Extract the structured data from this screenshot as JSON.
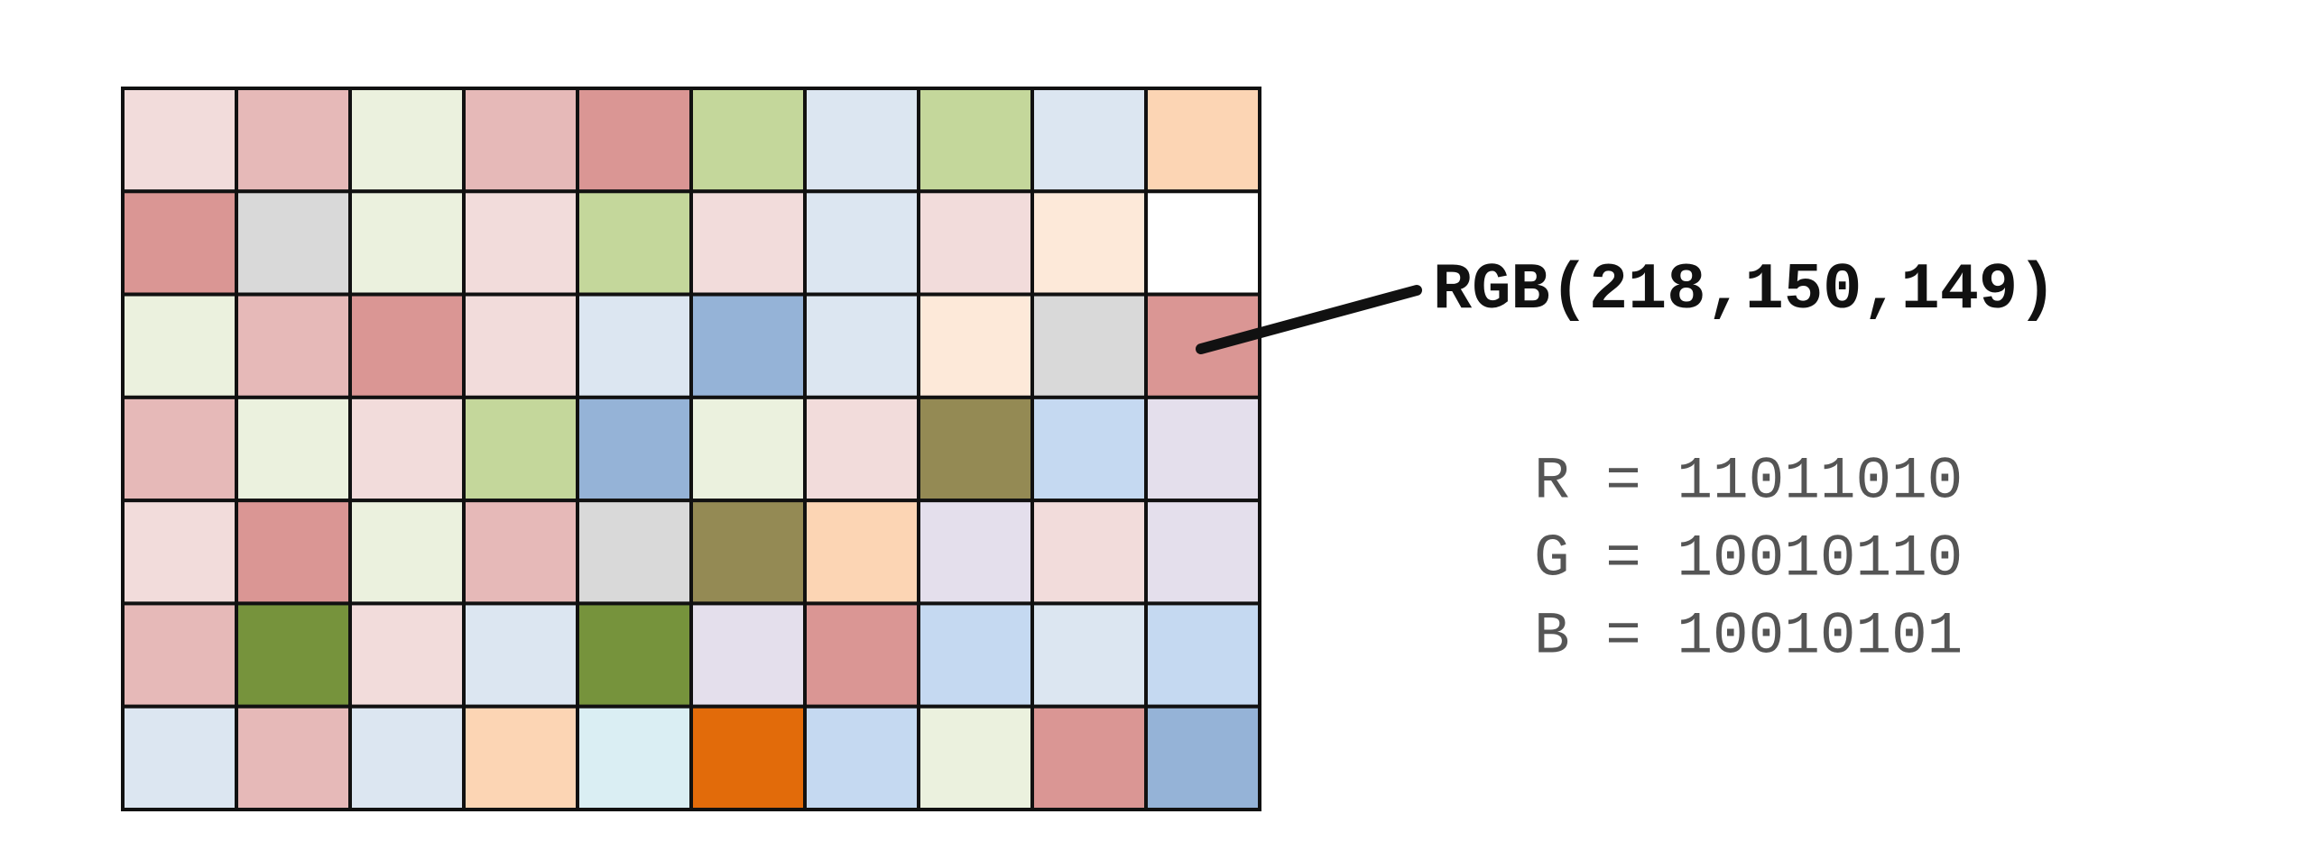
{
  "pixels": {
    "rows": [
      [
        "#f2dcdb",
        "#e6b9b8",
        "#ebf1de",
        "#e6b9b8",
        "#da9694",
        "#c4d79b",
        "#dce6f1",
        "#c4d79b",
        "#dce6f1",
        "#fcd5b4"
      ],
      [
        "#da9694",
        "#d9d9d9",
        "#ebf1de",
        "#f2dcdb",
        "#c4d79b",
        "#f2dcdb",
        "#dce6f1",
        "#f2dcdb",
        "#fde9d9",
        "#ffffff"
      ],
      [
        "#ebf1de",
        "#e6b9b8",
        "#da9694",
        "#f2dcdb",
        "#dce6f1",
        "#95b3d7",
        "#dce6f1",
        "#fde9d9",
        "#d9d9d9",
        "#da9694"
      ],
      [
        "#e6b9b8",
        "#ebf1de",
        "#f2dcdb",
        "#c4d79b",
        "#95b3d7",
        "#ebf1de",
        "#f2dcdb",
        "#948a54",
        "#c5d9f1",
        "#e4dfec"
      ],
      [
        "#f2dcdb",
        "#da9694",
        "#ebf1de",
        "#e6b9b8",
        "#d9d9d9",
        "#948a54",
        "#fcd5b4",
        "#e4dfec",
        "#f2dcdb",
        "#e4dfec"
      ],
      [
        "#e6b9b8",
        "#76933c",
        "#f2dcdb",
        "#dce6f1",
        "#76933c",
        "#e4dfec",
        "#da9694",
        "#c5d9f1",
        "#dce6f1",
        "#c5d9f1"
      ],
      [
        "#dce6f1",
        "#e6b9b8",
        "#dce6f1",
        "#fcd5b4",
        "#daeef3",
        "#e26b0a",
        "#c5d9f1",
        "#ebf1de",
        "#da9694",
        "#95b3d7"
      ]
    ]
  },
  "callout": "RGB(218,150,149)",
  "binary": [
    "R = 11011010",
    "G = 10010110",
    "B = 10010101"
  ]
}
